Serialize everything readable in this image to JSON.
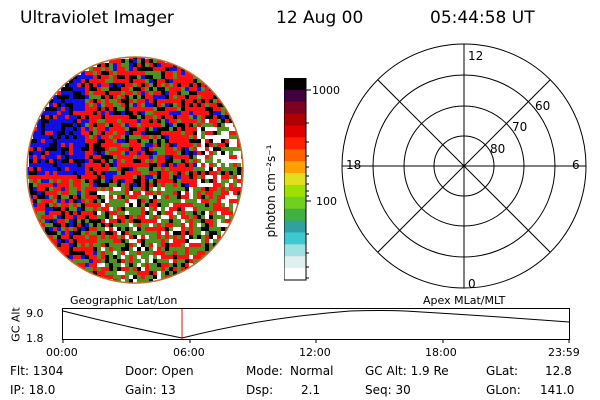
{
  "header": {
    "instrument": "Ultraviolet Imager",
    "date": "12 Aug 00",
    "time": "05:44:58 UT"
  },
  "colorbar": {
    "unit_label": "photon cm⁻²s⁻¹",
    "ticks": [
      "1000",
      "100"
    ],
    "colors": [
      "#ffffff",
      "#e0f0f0",
      "#a0e0e0",
      "#40c8d0",
      "#30a0a0",
      "#40b040",
      "#70d020",
      "#a0e000",
      "#e0e020",
      "#ffa000",
      "#ff6000",
      "#ff2000",
      "#e00000",
      "#b00000",
      "#800020",
      "#400040",
      "#000000"
    ]
  },
  "image_panel": {
    "colors": {
      "blue": "#1010e0",
      "red": "#ff1010",
      "green": "#509020",
      "black": "#000000",
      "navy": "#000040",
      "rim": "#c07030"
    }
  },
  "polar_grid": {
    "hour_labels": [
      "12",
      "18",
      "6",
      "0"
    ],
    "lat_labels": [
      "60",
      "70",
      "80"
    ]
  },
  "orbit_panel": {
    "left_title": "Geographic Lat/Lon",
    "right_title": "Apex MLat/MLT",
    "y_axis_label": "GC Alt",
    "y_ticks": [
      "9.0",
      "1.8"
    ],
    "x_ticks": [
      "00:00",
      "06:00",
      "12:00",
      "18:00",
      "23:59"
    ],
    "marker_color": "#ff0000",
    "marker_time": "05:44:58"
  },
  "info": {
    "flt": "Flt: 1304",
    "ip": "IP: 18.0",
    "door": "Door: Open",
    "gain": "Gain: 13",
    "mode_label": "Mode:",
    "mode_value": "Normal",
    "dsp_label": "Dsp:",
    "dsp_value": "2.1",
    "gcalt": "GC Alt: 1.9 Re",
    "seq": "Seq: 30",
    "glat_label": "GLat:",
    "glat_value": "12.8",
    "glon_label": "GLon:",
    "glon_value": "141.0"
  }
}
